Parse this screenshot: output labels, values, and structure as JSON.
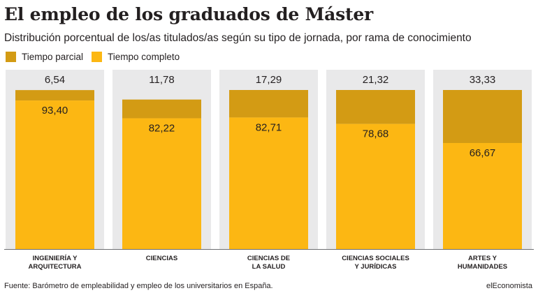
{
  "header": {
    "title": "El empleo de los graduados de Máster",
    "subtitle": "Distribución porcentual de los/as titulados/as según su tipo de jornada, por rama de conocimiento"
  },
  "footer": {
    "source": "Fuente: Barómetro de empleabilidad y empleo de los universitarios en España.",
    "brand": "elEconomista"
  },
  "chart_data": {
    "type": "bar",
    "stacked": true,
    "categories": [
      [
        "INGENIERÍA Y",
        "ARQUITECTURA"
      ],
      [
        "CIENCIAS"
      ],
      [
        "CIENCIAS DE",
        "LA SALUD"
      ],
      [
        "CIENCIAS SOCIALES",
        "Y JURÍDICAS"
      ],
      [
        "ARTES Y",
        "HUMANIDADES"
      ]
    ],
    "series": [
      {
        "name": "Tiempo completo",
        "color": "#fcb713",
        "values": [
          93.4,
          82.22,
          82.71,
          78.68,
          66.67
        ]
      },
      {
        "name": "Tiempo parcial",
        "color": "#d39b14",
        "values": [
          6.54,
          11.78,
          17.29,
          21.32,
          33.33
        ]
      }
    ],
    "data_labels": {
      "Tiempo completo": [
        "93,40",
        "82,22",
        "82,71",
        "78,68",
        "66,67"
      ],
      "Tiempo parcial": [
        "6,54",
        "11,78",
        "17,29",
        "21,32",
        "33,33"
      ]
    },
    "legend_order": [
      "Tiempo parcial",
      "Tiempo completo"
    ],
    "ylim": [
      0,
      100
    ],
    "grid": false,
    "legend_position": "top-left",
    "background_color": "#e9e9ea"
  }
}
